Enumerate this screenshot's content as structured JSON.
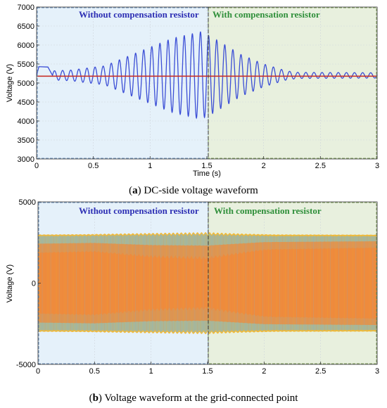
{
  "chart_data": [
    {
      "type": "line",
      "caption_prefix": "(",
      "caption_letter": "a",
      "caption_suffix": ") DC-side voltage waveform",
      "xlabel": "Time (s)",
      "ylabel": "Voltage (V)",
      "xlim": [
        0,
        3
      ],
      "ylim": [
        3000,
        7000
      ],
      "xticks": [
        "0",
        "0.5",
        "1",
        "1.5",
        "2",
        "2.5",
        "3"
      ],
      "yticks": [
        "3000",
        "3500",
        "4000",
        "4500",
        "5000",
        "5500",
        "6000",
        "6500",
        "7000"
      ],
      "region_left_label": "Without compensation resistor",
      "region_right_label": "With compensation resistor",
      "switch_time": 1.5,
      "grid": true,
      "series": [
        {
          "kind": "oscillation",
          "color": "#3c4fd6",
          "center": 5200,
          "frequency_hz": 14,
          "initial": [
            [
              0,
              5200
            ],
            [
              0.02,
              5430
            ],
            [
              0.1,
              5420
            ],
            [
              0.14,
              5200
            ]
          ],
          "envelope": [
            [
              0.14,
              120
            ],
            [
              0.3,
              140
            ],
            [
              0.6,
              250
            ],
            [
              0.9,
              620
            ],
            [
              1.2,
              980
            ],
            [
              1.45,
              1150
            ],
            [
              1.55,
              1000
            ],
            [
              1.8,
              550
            ],
            [
              2.0,
              300
            ],
            [
              2.2,
              120
            ],
            [
              2.3,
              80
            ],
            [
              3.0,
              70
            ]
          ]
        },
        {
          "kind": "constant",
          "color": "#c8322b",
          "value": 5180
        }
      ]
    },
    {
      "type": "line",
      "caption_prefix": "(",
      "caption_letter": "b",
      "caption_suffix": ") Voltage waveform at the grid-connected point",
      "xlabel": "",
      "ylabel": "Voltage (V)",
      "xlim": [
        0,
        3
      ],
      "ylim": [
        -5000,
        5000
      ],
      "xticks": [
        "0",
        "0.5",
        "1",
        "1.5",
        "2",
        "2.5",
        "3"
      ],
      "yticks": [
        "-5000",
        "0",
        "5000"
      ],
      "region_left_label": "Without compensation resistor",
      "region_right_label": "With compensation resistor",
      "switch_time": 1.5,
      "grid": true,
      "series": [
        {
          "kind": "ac-band",
          "colors": [
            "#f2b21b",
            "#6fb3e4",
            "#ee8a3c"
          ],
          "amplitude": 3000,
          "ripple_hz": 14,
          "ripple_envelope": [
            [
              0,
              60
            ],
            [
              0.4,
              90
            ],
            [
              0.8,
              180
            ],
            [
              1.2,
              260
            ],
            [
              1.5,
              300
            ],
            [
              1.8,
              160
            ],
            [
              2.1,
              60
            ],
            [
              3.0,
              40
            ]
          ],
          "inner_envelope": [
            [
              0,
              1900
            ],
            [
              0.5,
              2000
            ],
            [
              1.0,
              1750
            ],
            [
              1.5,
              1700
            ],
            [
              2.0,
              2100
            ],
            [
              3.0,
              2200
            ]
          ]
        }
      ]
    }
  ]
}
